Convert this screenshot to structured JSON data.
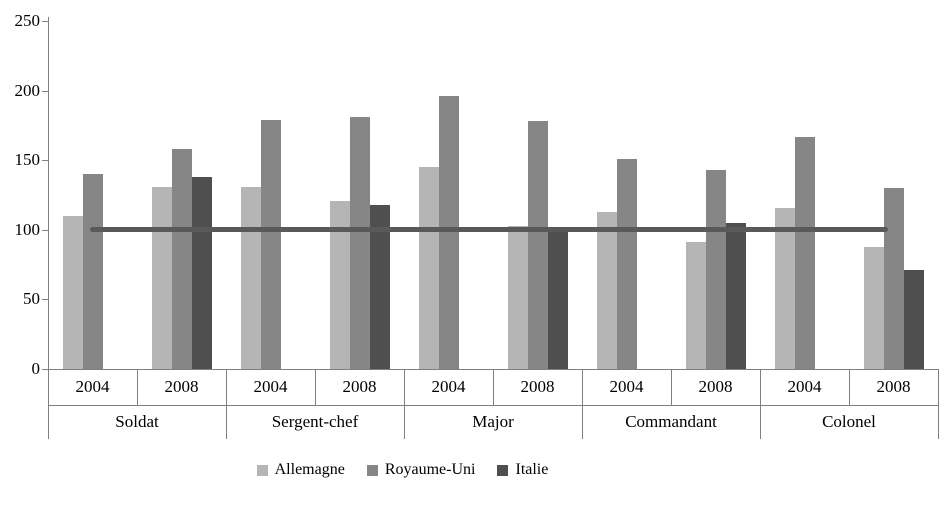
{
  "chart_data": {
    "type": "bar",
    "title": "",
    "categories": [
      "Soldat",
      "Sergent-chef",
      "Major",
      "Commandant",
      "Colonel"
    ],
    "sub_categories": [
      "2004",
      "2008"
    ],
    "x_cells": [
      "2004",
      "2008",
      "2004",
      "2008",
      "2004",
      "2008",
      "2004",
      "2008",
      "2004",
      "2008"
    ],
    "series": [
      {
        "name": "Allemagne",
        "color": "#b5b5b5",
        "values": [
          110,
          131,
          131,
          121,
          145,
          103,
          113,
          91,
          116,
          88
        ]
      },
      {
        "name": "Royaume-Uni",
        "color": "#868686",
        "values": [
          140,
          158,
          179,
          181,
          196,
          178,
          151,
          143,
          167,
          130
        ]
      },
      {
        "name": "Italie",
        "color": "#4f4f4f",
        "values": [
          null,
          138,
          null,
          118,
          null,
          102,
          null,
          105,
          null,
          71
        ]
      }
    ],
    "reference_line": {
      "value": 100,
      "color": "#595959"
    },
    "ylim": [
      0,
      250
    ],
    "yticks": [
      0,
      50,
      100,
      150,
      200,
      250
    ],
    "grid": false,
    "legend_position": "bottom",
    "axis_line_color": "#7f7f7f"
  }
}
